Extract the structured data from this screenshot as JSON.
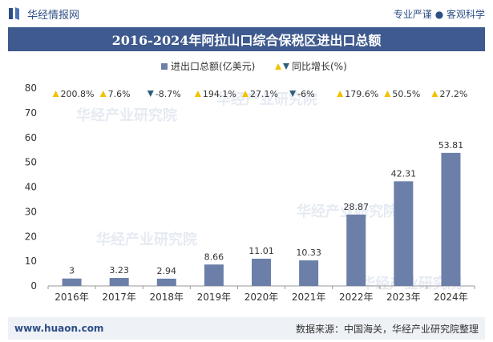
{
  "header": {
    "brand": "华经情报网",
    "tagline": "专业严谨 ● 客观科学"
  },
  "footer": {
    "url": "www.huaon.com",
    "source": "数据来源：中国海关，华经产业研究院整理"
  },
  "watermark": "华经产业研究院",
  "colors": {
    "bar": "#6b7fa8",
    "up": "#f2c200",
    "down": "#2f5f7a",
    "title_bg": "#3e5a8e"
  },
  "chart_data": {
    "type": "bar",
    "title": "2016-2024年阿拉山口综合保税区进出口总额",
    "categories": [
      "2016年",
      "2017年",
      "2018年",
      "2019年",
      "2020年",
      "2021年",
      "2022年",
      "2023年",
      "2024年"
    ],
    "series": [
      {
        "name": "进出口总额(亿美元)",
        "values": [
          3,
          3.23,
          2.94,
          8.66,
          11.01,
          10.33,
          28.87,
          42.31,
          53.81
        ]
      }
    ],
    "growth": {
      "name": "同比增长(%)",
      "values": [
        200.8,
        7.6,
        -8.7,
        194.1,
        27.1,
        -6,
        179.6,
        50.5,
        27.2
      ],
      "labels": [
        "200.8%",
        "7.6%",
        "-8.7%",
        "194.1%",
        "27.1%",
        "-6%",
        "179.6%",
        "50.5%",
        "27.2%"
      ]
    },
    "ylim": [
      0,
      80
    ],
    "yticks": [
      0,
      10,
      20,
      30,
      40,
      50,
      60,
      70,
      80
    ],
    "legend_position": "top-center",
    "grid": false
  }
}
